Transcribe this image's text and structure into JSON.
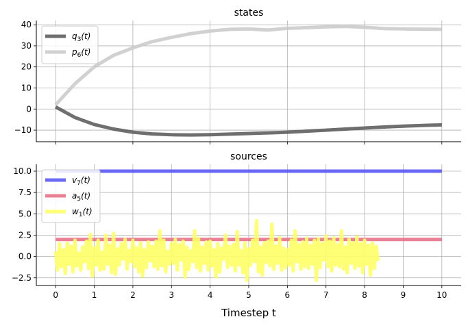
{
  "chart_data": [
    {
      "type": "line",
      "title": "states",
      "xlabel": "",
      "ylabel": "",
      "xlim": [
        -0.5,
        10.5
      ],
      "ylim": [
        -15.5,
        42
      ],
      "xticks": [
        0,
        2,
        4,
        6,
        8,
        10
      ],
      "yticks": [
        -10,
        0,
        10,
        20,
        30,
        40
      ],
      "ytick_labels": [
        "−10",
        "0",
        "10",
        "20",
        "30",
        "40"
      ],
      "grid": true,
      "legend_position": "top-left",
      "series": [
        {
          "name": "q3(t)",
          "base": "q",
          "sub": "3",
          "color": "#5f5f5f",
          "x": [
            0,
            0.5,
            1,
            1.5,
            2,
            2.5,
            3,
            3.5,
            4,
            4.5,
            5,
            5.5,
            6,
            6.5,
            7,
            7.5,
            8,
            8.5,
            9,
            9.5,
            10
          ],
          "y": [
            1,
            -4,
            -7.3,
            -9.5,
            -11,
            -11.8,
            -12.2,
            -12.3,
            -12.2,
            -11.9,
            -11.6,
            -11.3,
            -11,
            -10.5,
            -10,
            -9.5,
            -9,
            -8.5,
            -8.1,
            -7.8,
            -7.5
          ]
        },
        {
          "name": "p6(t)",
          "base": "p",
          "sub": "6",
          "color": "#cccccc",
          "x": [
            0,
            0.5,
            1,
            1.5,
            2,
            2.5,
            3,
            3.5,
            4,
            4.5,
            5,
            5.5,
            6,
            6.5,
            7,
            7.5,
            8,
            8.5,
            9,
            9.5,
            10
          ],
          "y": [
            2,
            12,
            20,
            25.5,
            29,
            32,
            34,
            35.8,
            37,
            37.8,
            38,
            37.5,
            38.3,
            38.6,
            39,
            39.2,
            38.8,
            38.2,
            38,
            37.9,
            37.8
          ]
        }
      ]
    },
    {
      "type": "line",
      "title": "sources",
      "xlabel": "Timestep t",
      "ylabel": "",
      "xlim": [
        -0.5,
        10.5
      ],
      "ylim": [
        -3.4,
        10.8
      ],
      "xticks": [
        0,
        1,
        2,
        3,
        4,
        5,
        6,
        7,
        8,
        9,
        10
      ],
      "yticks": [
        -2.5,
        0,
        2.5,
        5,
        7.5,
        10
      ],
      "ytick_labels": [
        "−2.5",
        "0.0",
        "2.5",
        "5.0",
        "7.5",
        "10.0"
      ],
      "grid": true,
      "legend_position": "top-left",
      "series": [
        {
          "name": "v7(t)",
          "base": "v",
          "sub": "7",
          "color": "#5a5af5",
          "x": [
            0,
            10
          ],
          "y": [
            10,
            10
          ]
        },
        {
          "name": "a5(t)",
          "base": "a",
          "sub": "5",
          "color": "#e8728a",
          "x": [
            0,
            10
          ],
          "y": [
            2,
            2
          ]
        },
        {
          "name": "w1(t)",
          "base": "w",
          "sub": "1",
          "color": "#ffff66",
          "x_start": 0,
          "x_step": 0.05,
          "y": [
            0.6,
            -1.6,
            1.5,
            -1.2,
            0.8,
            -2.0,
            1.6,
            -0.9,
            1.2,
            -1.8,
            1.9,
            -1.1,
            0.4,
            -1.6,
            1.1,
            -0.6,
            1.8,
            -1.4,
            2.6,
            -2.3,
            1.0,
            -1.0,
            1.9,
            -1.6,
            0.5,
            -1.5,
            2.5,
            -0.9,
            1.3,
            -1.9,
            2.7,
            -2.1,
            0.9,
            -1.0,
            1.5,
            -0.3,
            2.0,
            -1.5,
            0.7,
            -0.6,
            1.9,
            -1.2,
            1.0,
            -1.8,
            1.6,
            -2.3,
            0.8,
            -1.3,
            1.7,
            -0.5,
            1.2,
            -1.2,
            1.8,
            -1.5,
            3.0,
            -1.1,
            1.9,
            -1.8,
            0.6,
            -0.9,
            1.5,
            -0.8,
            2.0,
            -1.6,
            1.4,
            -0.4,
            1.8,
            -2.4,
            1.1,
            -1.5,
            0.7,
            -0.6,
            3.0,
            -1.3,
            2.1,
            -1.7,
            1.1,
            -0.8,
            1.7,
            -1.6,
            1.8,
            -1.1,
            0.8,
            -2.4,
            1.5,
            -1.8,
            1.0,
            -0.3,
            2.5,
            -1.3,
            1.2,
            -1.0,
            1.4,
            -1.7,
            2.9,
            -1.0,
            0.7,
            -1.9,
            1.6,
            -2.8,
            0.9,
            -1.0,
            1.9,
            -0.6,
            4.2,
            -1.8,
            1.1,
            -2.2,
            1.6,
            -0.7,
            1.8,
            -1.1,
            3.8,
            -1.5,
            1.2,
            -0.8,
            2.2,
            -1.6,
            1.0,
            -1.3,
            0.8,
            -1.0,
            1.9,
            -1.7,
            3.0,
            -0.6,
            1.4,
            -1.5,
            1.7,
            -1.2,
            2.1,
            -1.4,
            1.3,
            -0.9,
            1.9,
            -2.8,
            2.1,
            -1.3,
            1.5,
            -0.4,
            2.4,
            -1.2,
            1.8,
            -1.7,
            2.2,
            -1.0,
            1.4,
            -1.2,
            3.0,
            -1.5,
            1.1,
            -1.9,
            2.0,
            -0.8,
            1.6,
            -1.4,
            2.3,
            -1.1,
            1.5,
            -1.9,
            1.9,
            -0.9,
            1.3,
            -2.2,
            1.6,
            -1.4,
            1.2,
            -0.5
          ]
        }
      ]
    }
  ]
}
